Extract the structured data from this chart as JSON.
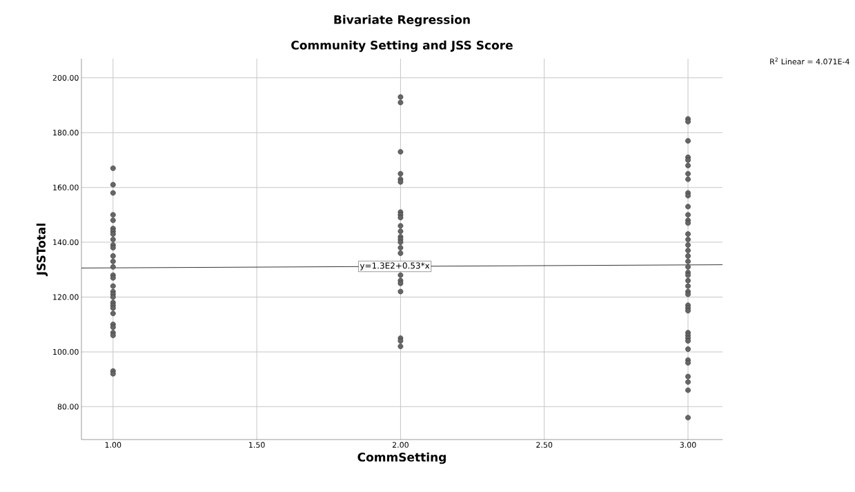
{
  "chart_data": {
    "type": "scatter",
    "title": "Bivariate Regression",
    "subtitle": "Community Setting and JSS Score",
    "xlabel": "CommSetting",
    "ylabel": "JSSTotal",
    "xlim": [
      0.89,
      3.12
    ],
    "ylim": [
      68,
      207
    ],
    "xticks": [
      {
        "value": 1,
        "label": "1.00"
      },
      {
        "value": 1.5,
        "label": "1.50"
      },
      {
        "value": 2,
        "label": "2.00"
      },
      {
        "value": 2.5,
        "label": "2.50"
      },
      {
        "value": 3,
        "label": "3.00"
      }
    ],
    "yticks": [
      {
        "value": 80,
        "label": "80.00"
      },
      {
        "value": 100,
        "label": "100.00"
      },
      {
        "value": 120,
        "label": "120.00"
      },
      {
        "value": 140,
        "label": "140.00"
      },
      {
        "value": 160,
        "label": "160.00"
      },
      {
        "value": 180,
        "label": "180.00"
      },
      {
        "value": 200,
        "label": "200.00"
      }
    ],
    "grid": true,
    "series": [
      {
        "marker": "circle",
        "color": "#666666",
        "x": [
          1,
          1,
          1,
          1,
          1,
          1,
          1,
          1,
          1,
          1,
          1,
          1,
          1,
          1,
          1,
          1,
          1,
          1,
          1,
          1,
          1,
          1,
          1,
          1,
          1,
          1,
          1,
          1,
          1,
          1,
          2,
          2,
          2,
          2,
          2,
          2,
          2,
          2,
          2,
          2,
          2,
          2,
          2,
          2,
          2,
          2,
          2,
          2,
          2,
          2,
          2,
          2,
          2,
          3,
          3,
          3,
          3,
          3,
          3,
          3,
          3,
          3,
          3,
          3,
          3,
          3,
          3,
          3,
          3,
          3,
          3,
          3,
          3,
          3,
          3,
          3,
          3,
          3,
          3,
          3,
          3,
          3,
          3,
          3,
          3,
          3,
          3,
          3,
          3,
          3,
          3,
          3,
          3,
          3
        ],
        "values": [
          167,
          161,
          158,
          150,
          148,
          145,
          144,
          143,
          141,
          139,
          138,
          135,
          133,
          131,
          128,
          127,
          124,
          122,
          121,
          120,
          118,
          117,
          116,
          114,
          110,
          109,
          107,
          106,
          93,
          92,
          193,
          191,
          173,
          165,
          163,
          162,
          151,
          150,
          149,
          146,
          144,
          142,
          141,
          140,
          138,
          136,
          128,
          126,
          125,
          122,
          105,
          104,
          102,
          185,
          184,
          177,
          171,
          170,
          168,
          165,
          163,
          158,
          157,
          153,
          150,
          148,
          147,
          143,
          141,
          139,
          137,
          135,
          133,
          131,
          129,
          128,
          126,
          124,
          122,
          121,
          117,
          116,
          115,
          107,
          106,
          105,
          104,
          101,
          97,
          96,
          91,
          89,
          86,
          76
        ]
      },
      {
        "type": "line",
        "marker": "none",
        "color": "#000000",
        "x": [
          0.89,
          3.12
        ],
        "values": [
          130.6,
          131.8
        ]
      }
    ],
    "annotations": [
      {
        "text": "y=1.3E2+0.53*x",
        "x": 1.98,
        "y": 131.2
      },
      "R$^{2}$ Linear = 4.071E-4"
    ]
  }
}
